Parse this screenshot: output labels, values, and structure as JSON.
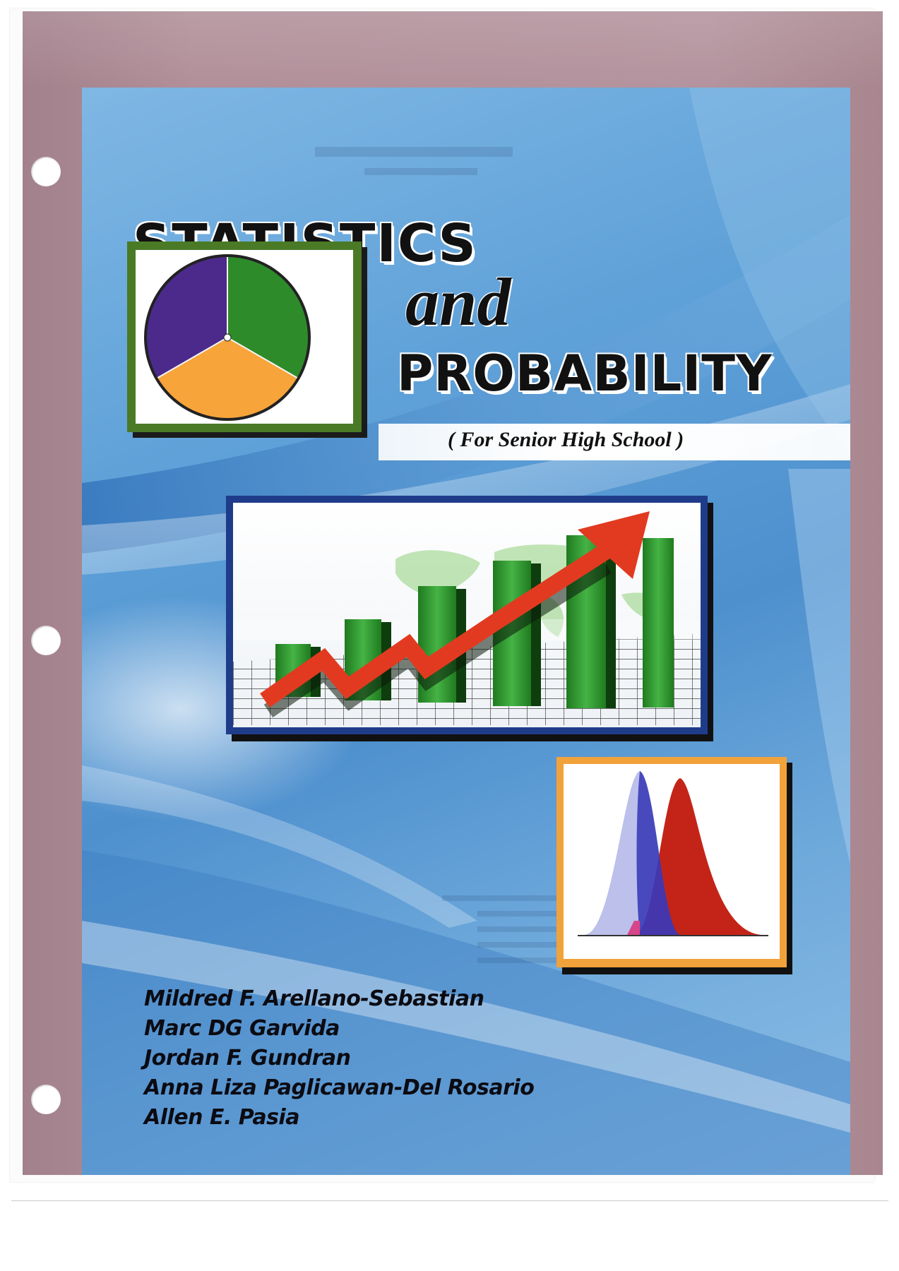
{
  "cover": {
    "title_line1": "STATISTICS",
    "title_line2": "and",
    "title_line3": "PROBABILITY",
    "subtitle": "( For Senior High School )",
    "authors": [
      "Mildred F. Arellano-Sebastian",
      "Marc DG Garvida",
      "Jordan F. Gundran",
      "Anna Liza Paglicawan-Del Rosario",
      "Allen E. Pasia"
    ]
  },
  "illustrations": {
    "pie": {
      "colors": [
        "#2e8b2a",
        "#f7a43a",
        "#4b2a8c"
      ],
      "frame_color": "#4a7a26"
    },
    "bar_chart": {
      "bar_color": "#2f9a2f",
      "arrow_color": "#e23a20",
      "frame_color": "#1f3c8a"
    },
    "distribution": {
      "left_curve_color": "#3a3ab8",
      "right_curve_color": "#c42418",
      "frame_color": "#f2a23a"
    }
  },
  "colors": {
    "sleeve": "#b08e98",
    "cover_blue": "#5fa1d8"
  }
}
